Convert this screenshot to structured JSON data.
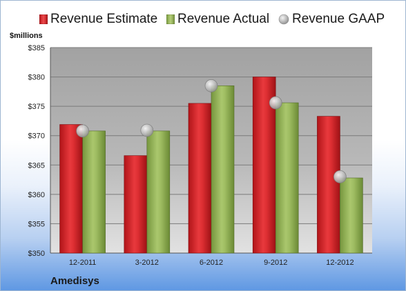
{
  "unit_label": "$millions",
  "company": "Amedisys",
  "chart_data": {
    "type": "bar",
    "categories": [
      "12-2011",
      "3-2012",
      "6-2012",
      "9-2012",
      "12-2012"
    ],
    "series": [
      {
        "name": "Revenue Estimate",
        "kind": "bar",
        "color": "#cc1c20",
        "values": [
          371.9,
          366.6,
          375.5,
          380.0,
          373.3
        ]
      },
      {
        "name": "Revenue Actual",
        "kind": "bar",
        "color": "#8cac50",
        "values": [
          370.8,
          370.8,
          378.5,
          375.6,
          362.8
        ]
      },
      {
        "name": "Revenue GAAP",
        "kind": "marker",
        "color": "#a9a9a9",
        "values": [
          370.8,
          370.9,
          378.5,
          375.6,
          363.0
        ]
      }
    ],
    "ylim": [
      350,
      385
    ],
    "yticks": [
      "$350",
      "$355",
      "$360",
      "$365",
      "$370",
      "$375",
      "$380",
      "$385"
    ],
    "legend_position": "top",
    "grid": true
  }
}
